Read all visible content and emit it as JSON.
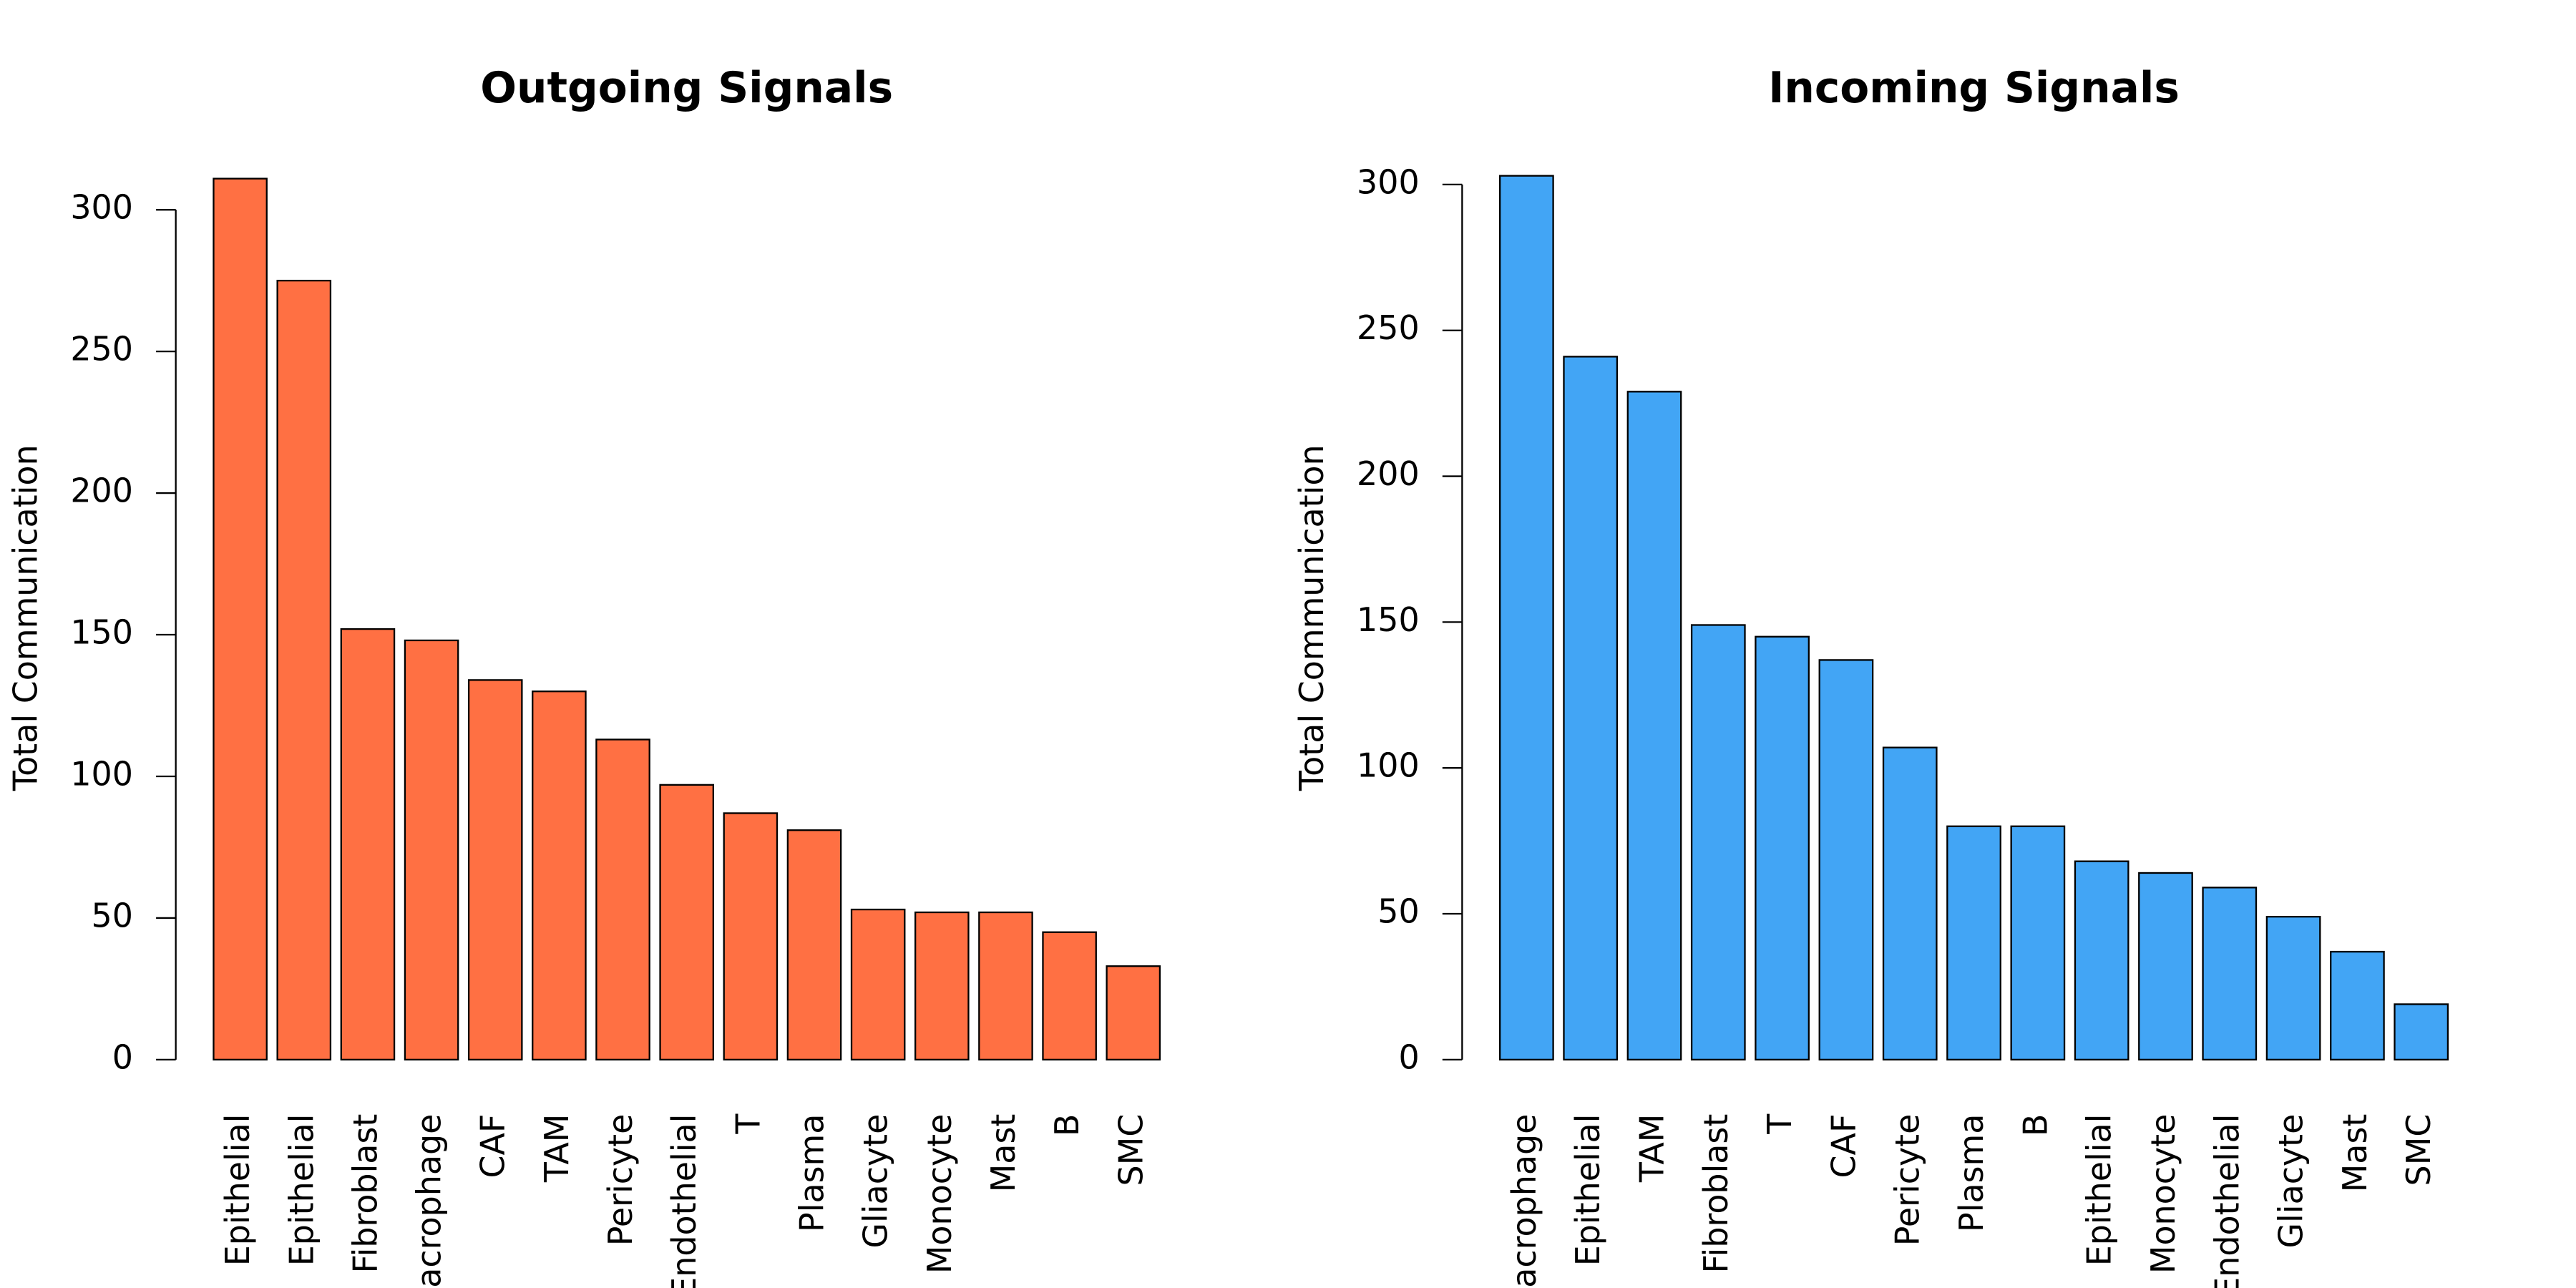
{
  "chart_data": [
    {
      "type": "bar",
      "title": "Outgoing Signals",
      "ylabel": "Total Communication",
      "color": "#FF7043",
      "categories": [
        "Epithelial",
        "Epithelial",
        "Fibroblast",
        "Macrophage",
        "CAF",
        "TAM",
        "Pericyte",
        "Endothelial",
        "T",
        "Plasma",
        "Gliacyte",
        "Monocyte",
        "Mast",
        "B",
        "SMC"
      ],
      "values": [
        311,
        275,
        152,
        148,
        134,
        130,
        113,
        97,
        87,
        81,
        53,
        52,
        52,
        45,
        33
      ],
      "ylim": [
        0,
        312
      ],
      "yticks": [
        0,
        50,
        100,
        150,
        200,
        250,
        300
      ]
    },
    {
      "type": "bar",
      "title": "Incoming Signals",
      "ylabel": "Total Communication",
      "color": "#42A5F5",
      "categories": [
        "Macrophage",
        "Epithelial",
        "TAM",
        "Fibroblast",
        "T",
        "CAF",
        "Pericyte",
        "Plasma",
        "B",
        "Epithelial",
        "Monocyte",
        "Endothelial",
        "Gliacyte",
        "Mast",
        "SMC"
      ],
      "values": [
        303,
        241,
        229,
        149,
        145,
        137,
        107,
        80,
        80,
        68,
        64,
        59,
        49,
        37,
        19
      ],
      "ylim": [
        0,
        303
      ],
      "yticks": [
        0,
        50,
        100,
        150,
        200,
        250,
        300
      ]
    }
  ]
}
